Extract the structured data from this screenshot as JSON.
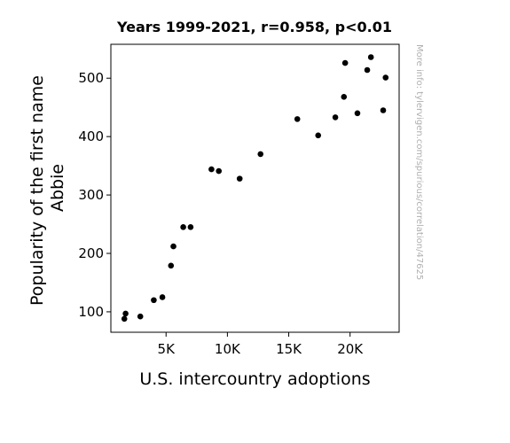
{
  "chart_data": {
    "type": "scatter",
    "title": "Years 1999-2021, r=0.958, p<0.01",
    "xlabel": "U.S. intercountry adoptions",
    "ylabel_lines": [
      "Popularity of the first name",
      "Abbie"
    ],
    "watermark": "More info: tylervigen.com/spurious/correlation/47625",
    "xlim": [
      500,
      24000
    ],
    "ylim": [
      65,
      558
    ],
    "xticks": [
      {
        "value": 5000,
        "label": "5K"
      },
      {
        "value": 10000,
        "label": "10K"
      },
      {
        "value": 15000,
        "label": "15K"
      },
      {
        "value": 20000,
        "label": "20K"
      }
    ],
    "yticks": [
      {
        "value": 100,
        "label": "100"
      },
      {
        "value": 200,
        "label": "200"
      },
      {
        "value": 300,
        "label": "300"
      },
      {
        "value": 400,
        "label": "400"
      },
      {
        "value": 500,
        "label": "500"
      }
    ],
    "grid": false,
    "marker_color": "#000000",
    "points": [
      {
        "x": 1600,
        "y": 88
      },
      {
        "x": 1700,
        "y": 97
      },
      {
        "x": 2900,
        "y": 92
      },
      {
        "x": 4000,
        "y": 120
      },
      {
        "x": 4700,
        "y": 125
      },
      {
        "x": 5400,
        "y": 179
      },
      {
        "x": 5600,
        "y": 212
      },
      {
        "x": 6400,
        "y": 245
      },
      {
        "x": 7000,
        "y": 245
      },
      {
        "x": 8700,
        "y": 344
      },
      {
        "x": 9300,
        "y": 341
      },
      {
        "x": 11000,
        "y": 328
      },
      {
        "x": 12700,
        "y": 370
      },
      {
        "x": 15700,
        "y": 430
      },
      {
        "x": 17400,
        "y": 402
      },
      {
        "x": 18800,
        "y": 433
      },
      {
        "x": 19500,
        "y": 468
      },
      {
        "x": 19600,
        "y": 526
      },
      {
        "x": 20600,
        "y": 440
      },
      {
        "x": 21400,
        "y": 514
      },
      {
        "x": 21700,
        "y": 536
      },
      {
        "x": 22700,
        "y": 445
      },
      {
        "x": 22900,
        "y": 501
      }
    ]
  }
}
